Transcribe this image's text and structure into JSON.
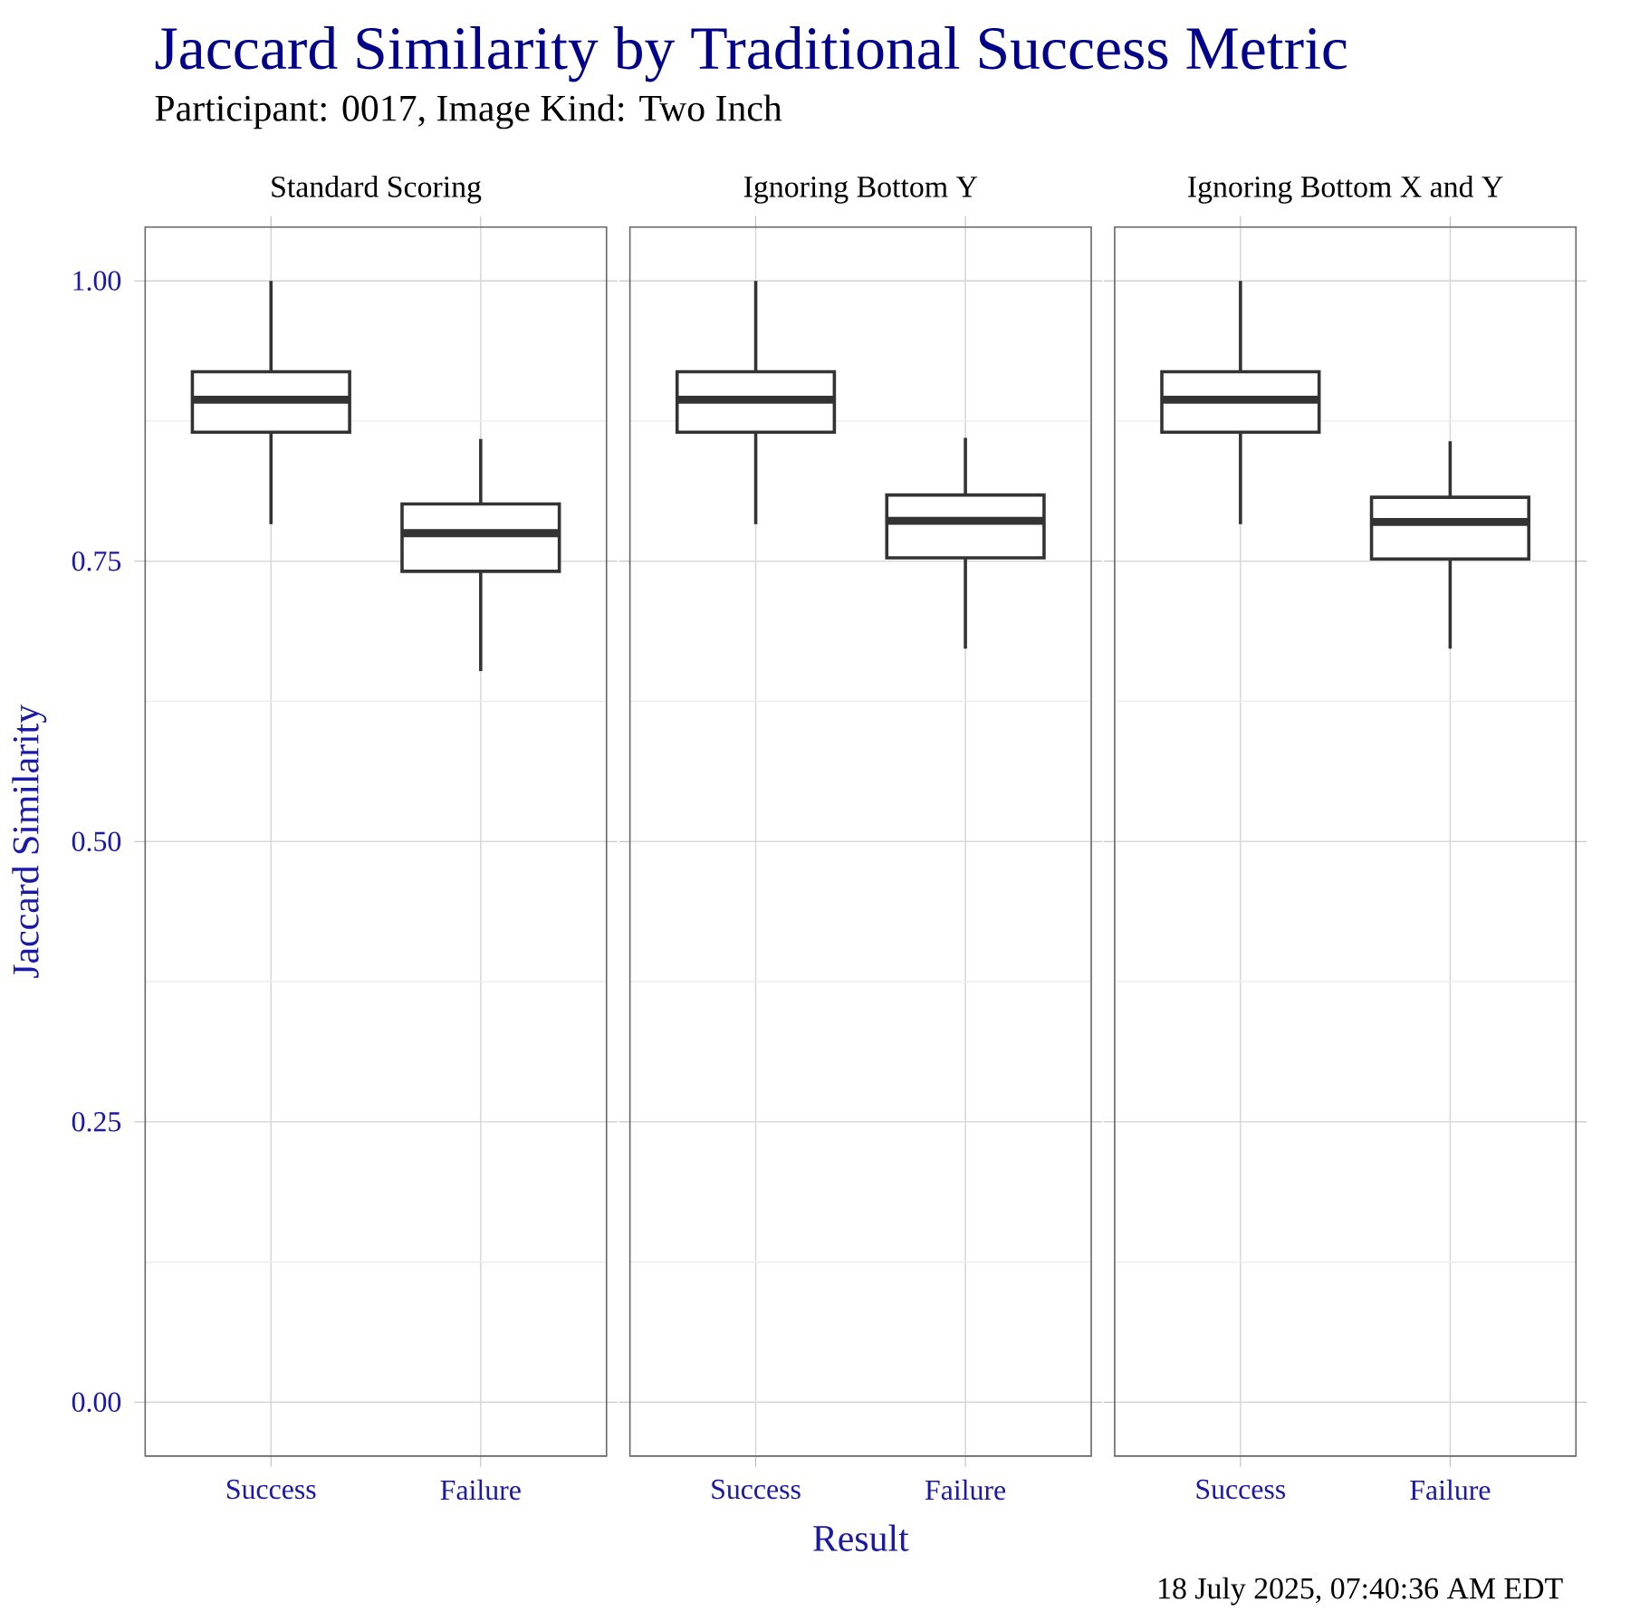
{
  "chart_data": [
    {
      "type": "box",
      "title": "Standard Scoring",
      "annotations": [
        "Jaccard Similarity by Traditional Success Metric",
        "Participant: 0017, Image Kind: Two Inch"
      ],
      "ylabel": "Jaccard Similarity",
      "categories": [
        "Success",
        "Failure"
      ],
      "color": "#333333",
      "boxes": [
        {
          "low": 0.783,
          "q1": 0.865,
          "median": 0.894,
          "q3": 0.919,
          "high": 1.0
        },
        {
          "low": 0.652,
          "q1": 0.741,
          "median": 0.775,
          "q3": 0.801,
          "high": 0.859
        }
      ],
      "ylim": [
        -0.048,
        1.048
      ],
      "yticks": [
        {
          "value": 0,
          "label": "0.00"
        },
        {
          "value": 0.25,
          "label": "0.25"
        },
        {
          "value": 0.5,
          "label": "0.50"
        },
        {
          "value": 0.75,
          "label": "0.75"
        },
        {
          "value": 1,
          "label": "1.00"
        }
      ],
      "grid": true
    },
    {
      "type": "box",
      "title": "Ignoring Bottom Y",
      "xlabel": "Result",
      "categories": [
        "Success",
        "Failure"
      ],
      "color": "#333333",
      "boxes": [
        {
          "low": 0.783,
          "q1": 0.865,
          "median": 0.894,
          "q3": 0.919,
          "high": 1.0
        },
        {
          "low": 0.672,
          "q1": 0.753,
          "median": 0.786,
          "q3": 0.809,
          "high": 0.86
        }
      ],
      "ylim": [
        -0.048,
        1.048
      ],
      "yticks": [
        0,
        0.25,
        0.5,
        0.75,
        1
      ],
      "grid": true,
      "tick_labels": "x"
    },
    {
      "type": "box",
      "title": "Ignoring Bottom X and Y",
      "annotations": [
        "18 July 2025, 07:40:36 AM EDT"
      ],
      "categories": [
        "Success",
        "Failure"
      ],
      "color": "#333333",
      "boxes": [
        {
          "low": 0.783,
          "q1": 0.865,
          "median": 0.894,
          "q3": 0.919,
          "high": 1.0
        },
        {
          "low": 0.672,
          "q1": 0.752,
          "median": 0.785,
          "q3": 0.807,
          "high": 0.857
        }
      ],
      "ylim": [
        -0.048,
        1.048
      ],
      "yticks": [
        0,
        0.25,
        0.5,
        0.75,
        1
      ],
      "grid": true,
      "tick_labels": "x"
    }
  ]
}
